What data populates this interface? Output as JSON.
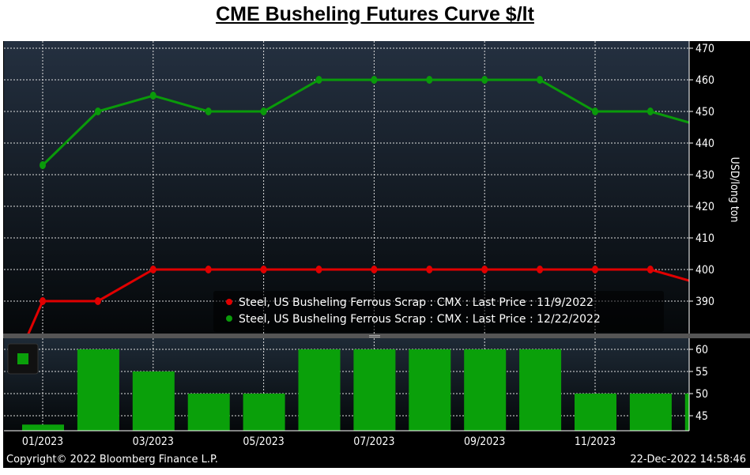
{
  "title": "CME Busheling Futures Curve $/lt",
  "footer": {
    "copyright": "Copyright© 2022 Bloomberg Finance L.P.",
    "timestamp": "22-Dec-2022 14:58:46"
  },
  "colors": {
    "red_series": "#e00000",
    "green_series": "#0a9a0a",
    "bars": "#0aa00a",
    "background_top": "#243040",
    "background_bottom": "#05080a"
  },
  "chart_data": [
    {
      "type": "line",
      "x": [
        "12/2022",
        "01/2023",
        "02/2023",
        "03/2023",
        "04/2023",
        "05/2023",
        "06/2023",
        "07/2023",
        "08/2023",
        "09/2023",
        "10/2023",
        "11/2023",
        "12/2023",
        "01/2024"
      ],
      "series": [
        {
          "name": "Steel, US Busheling Ferrous Scrap : CMX : Last Price : 11/9/2022",
          "color": "#e00000",
          "values": [
            350,
            390,
            390,
            400,
            400,
            400,
            400,
            400,
            400,
            400,
            400,
            400,
            400,
            395
          ]
        },
        {
          "name": "Steel, US Busheling Ferrous Scrap : CMX : Last Price : 12/22/2022",
          "color": "#0a9a0a",
          "values": [
            null,
            433,
            450,
            455,
            450,
            450,
            460,
            460,
            460,
            460,
            460,
            450,
            450,
            445
          ]
        }
      ],
      "ylabel": "USD/long ton",
      "ylim": [
        380,
        472
      ],
      "yticks": [
        390,
        400,
        410,
        420,
        430,
        440,
        450,
        460,
        470
      ],
      "xtick_labels": [
        "01/2023",
        "03/2023",
        "05/2023",
        "07/2023",
        "09/2023",
        "11/2023"
      ],
      "grid": true,
      "legend": "bottom-right"
    },
    {
      "type": "bar",
      "categories": [
        "01/2023",
        "02/2023",
        "03/2023",
        "04/2023",
        "05/2023",
        "06/2023",
        "07/2023",
        "08/2023",
        "09/2023",
        "10/2023",
        "11/2023",
        "12/2023",
        "01/2024"
      ],
      "values": [
        43,
        60,
        55,
        50,
        50,
        60,
        60,
        60,
        60,
        60,
        50,
        50,
        50
      ],
      "ylim": [
        41.8,
        62.5
      ],
      "yticks": [
        45,
        50,
        55,
        60
      ],
      "grid": true
    }
  ]
}
